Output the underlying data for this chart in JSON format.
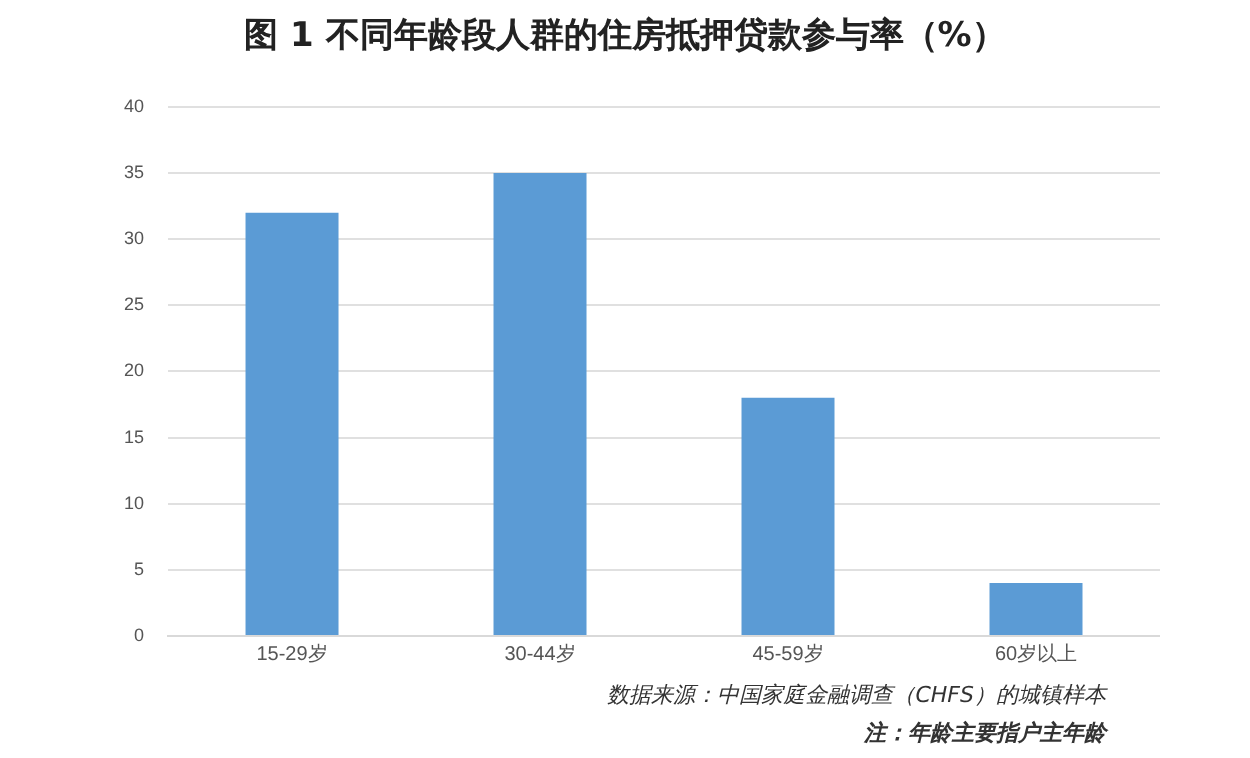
{
  "chart_data": {
    "type": "bar",
    "title": "图 1  不同年龄段人群的住房抵押贷款参与率（%）",
    "categories": [
      "15-29岁",
      "30-44岁",
      "45-59岁",
      "60岁以上"
    ],
    "values": [
      32,
      35,
      18,
      4
    ],
    "color": "#5b9bd5",
    "ylim": [
      0,
      40
    ],
    "yticks": [
      0,
      5,
      10,
      15,
      20,
      25,
      30,
      35,
      40
    ],
    "grid": "y",
    "annotations": [
      "数据来源：中国家庭金融调查（CHFS）的城镇样本",
      "注：年龄主要指户主年龄"
    ]
  }
}
